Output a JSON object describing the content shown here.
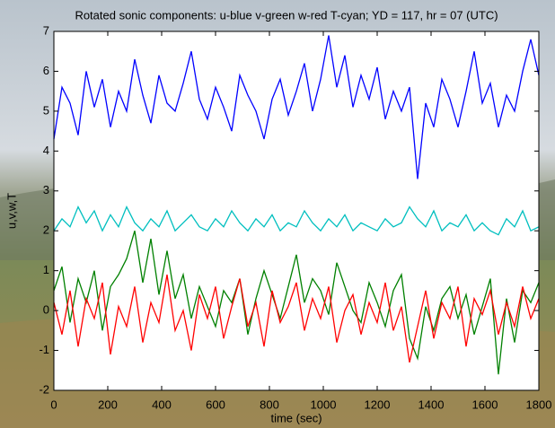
{
  "chart_data": {
    "type": "line",
    "title": "Rotated sonic components: u-blue v-green w-red T-cyan; YD = 117, hr = 07 (UTC)",
    "x_label": "time (sec)",
    "y_label": "u,v,w,T",
    "x": [
      0,
      30,
      60,
      90,
      120,
      150,
      180,
      210,
      240,
      270,
      300,
      330,
      360,
      390,
      420,
      450,
      480,
      510,
      540,
      570,
      600,
      630,
      660,
      690,
      720,
      750,
      780,
      810,
      840,
      870,
      900,
      930,
      960,
      990,
      1020,
      1050,
      1080,
      1110,
      1140,
      1170,
      1200,
      1230,
      1260,
      1290,
      1320,
      1350,
      1380,
      1410,
      1440,
      1470,
      1500,
      1530,
      1560,
      1590,
      1620,
      1650,
      1680,
      1710,
      1740,
      1770,
      1800
    ],
    "series": [
      {
        "color": "#0000ff",
        "values": [
          4.3,
          5.6,
          5.2,
          4.4,
          6.0,
          5.1,
          5.8,
          4.6,
          5.5,
          5.0,
          6.3,
          5.4,
          4.7,
          5.9,
          5.2,
          5.0,
          5.7,
          6.5,
          5.3,
          4.8,
          5.6,
          5.1,
          4.5,
          5.9,
          5.4,
          5.0,
          4.3,
          5.3,
          5.8,
          4.9,
          5.5,
          6.2,
          5.0,
          5.8,
          6.9,
          5.6,
          6.4,
          5.1,
          5.9,
          5.3,
          6.1,
          4.8,
          5.5,
          5.0,
          5.6,
          3.3,
          5.2,
          4.6,
          5.8,
          5.3,
          4.6,
          5.5,
          6.5,
          5.2,
          5.7,
          4.6,
          5.4,
          5.0,
          6.0,
          6.8,
          5.9
        ]
      },
      {
        "color": "#00bfbf",
        "values": [
          2.0,
          2.3,
          2.1,
          2.6,
          2.2,
          2.5,
          2.0,
          2.4,
          2.1,
          2.6,
          2.2,
          2.0,
          2.3,
          2.1,
          2.5,
          2.0,
          2.2,
          2.4,
          2.1,
          2.0,
          2.3,
          2.1,
          2.5,
          2.2,
          2.0,
          2.3,
          2.1,
          2.4,
          2.0,
          2.2,
          2.1,
          2.5,
          2.2,
          2.0,
          2.3,
          2.1,
          2.4,
          2.0,
          2.2,
          2.1,
          2.0,
          2.3,
          2.1,
          2.2,
          2.6,
          2.3,
          2.1,
          2.5,
          2.0,
          2.2,
          2.1,
          2.4,
          2.0,
          2.2,
          2.0,
          1.9,
          2.3,
          2.1,
          2.5,
          2.0,
          2.1
        ]
      },
      {
        "color": "#008000",
        "values": [
          0.5,
          1.1,
          -0.3,
          0.8,
          0.2,
          1.0,
          -0.5,
          0.6,
          0.9,
          1.3,
          2.0,
          0.7,
          1.8,
          0.4,
          1.5,
          0.3,
          0.9,
          -0.2,
          0.6,
          0.1,
          -0.4,
          0.5,
          0.2,
          0.8,
          -0.6,
          0.3,
          1.0,
          0.4,
          -0.2,
          0.6,
          1.4,
          0.2,
          0.8,
          0.5,
          -0.1,
          1.2,
          0.6,
          0.0,
          -0.3,
          0.7,
          0.2,
          -0.4,
          0.5,
          0.9,
          -0.7,
          -1.2,
          0.1,
          -0.5,
          0.3,
          0.6,
          -0.2,
          0.4,
          -0.6,
          0.1,
          0.8,
          -1.6,
          0.3,
          -0.8,
          0.5,
          0.2,
          0.7
        ]
      },
      {
        "color": "#ff0000",
        "values": [
          0.2,
          -0.6,
          0.5,
          -0.9,
          0.3,
          -0.2,
          0.7,
          -1.1,
          0.1,
          -0.4,
          0.6,
          -0.8,
          0.2,
          -0.3,
          0.9,
          -0.5,
          0.0,
          -1.0,
          0.4,
          -0.2,
          0.6,
          -0.7,
          0.1,
          0.8,
          -0.4,
          0.2,
          -0.9,
          0.5,
          -0.3,
          0.1,
          0.7,
          -0.5,
          0.3,
          -0.2,
          0.6,
          -0.8,
          0.0,
          0.4,
          -0.6,
          0.2,
          -0.3,
          0.7,
          -0.5,
          0.1,
          -1.3,
          -0.4,
          0.5,
          -0.7,
          0.2,
          -0.2,
          0.6,
          -0.9,
          0.3,
          -0.1,
          0.5,
          -0.6,
          0.2,
          -0.4,
          0.6,
          -0.2,
          0.3
        ]
      }
    ],
    "xlim": [
      0,
      1800
    ],
    "xticks": [
      0,
      200,
      400,
      600,
      800,
      1000,
      1200,
      1400,
      1600,
      1800
    ],
    "ylim": [
      -2,
      7
    ],
    "yticks": [
      -2,
      -1,
      0,
      1,
      2,
      3,
      4,
      5,
      6,
      7
    ],
    "grid": false
  }
}
